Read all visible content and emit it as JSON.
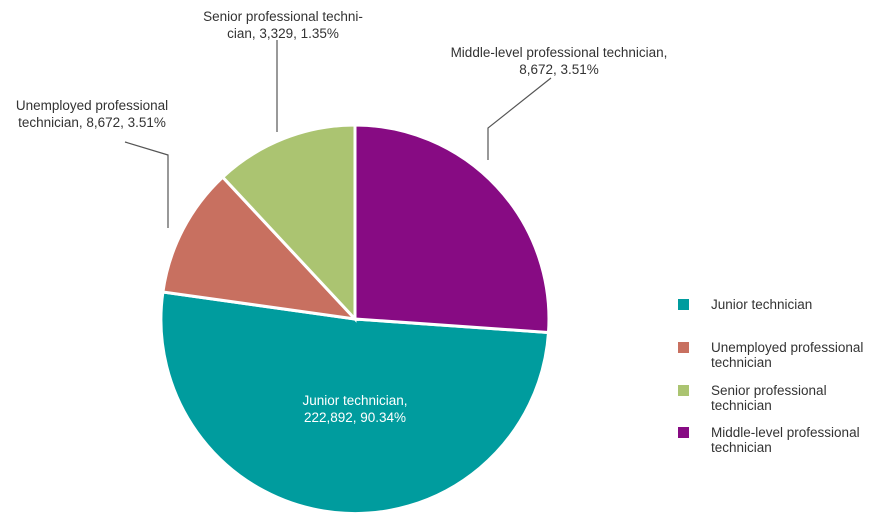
{
  "chart_data": {
    "type": "pie",
    "title": "",
    "legend_position": "right",
    "slices": [
      {
        "name": "Junior technician",
        "value": 222892,
        "percent": "90.34%",
        "color": "#009c9e",
        "label_lines": [
          "Junior technician,",
          "222,892, 90.34%"
        ],
        "legend_lines": [
          "Junior technician"
        ]
      },
      {
        "name": "Unemployed professional technician",
        "value": 8672,
        "percent": "3.51%",
        "color": "#c87060",
        "label_lines": [
          "Unemployed professional",
          "technician, 8,672, 3.51%"
        ],
        "legend_lines": [
          "Unemployed professional",
          "technician"
        ]
      },
      {
        "name": "Senior professional technician",
        "value": 3329,
        "percent": "1.35%",
        "color": "#abc471",
        "label_lines": [
          "Senior professional techni-",
          "cian, 3,329, 1.35%"
        ],
        "legend_lines": [
          "Senior professional",
          "technician"
        ]
      },
      {
        "name": "Middle-level professional technician",
        "value": 8672,
        "percent": "3.51%",
        "color": "#870b83",
        "label_lines": [
          "Middle-level professional technician,",
          "8,672, 3.51%"
        ],
        "legend_lines": [
          "Middle-level professional",
          "technician"
        ]
      }
    ]
  }
}
